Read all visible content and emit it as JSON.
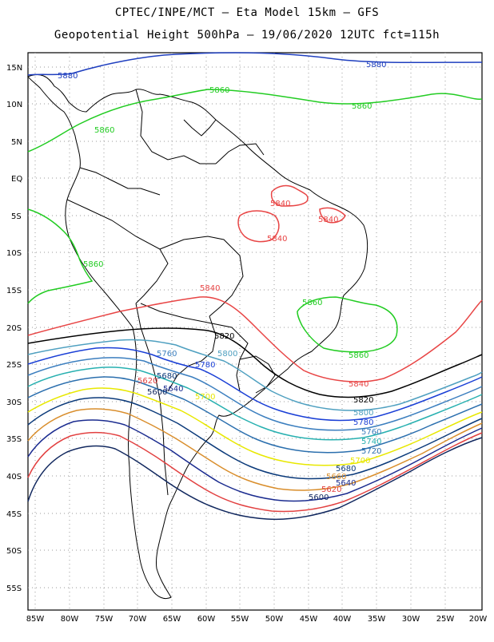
{
  "title": {
    "line1": "CPTEC/INPE/MCT  –   Eta Model 15km  –  GFS",
    "line2": "Geopotential Height 500hPa  –  19/06/2020 12UTC fct=115h"
  },
  "axes": {
    "lon_labels": [
      "85W",
      "80W",
      "75W",
      "70W",
      "65W",
      "60W",
      "55W",
      "50W",
      "45W",
      "40W",
      "35W",
      "30W",
      "25W",
      "20W"
    ],
    "lat_labels": [
      "15N",
      "10N",
      "5N",
      "EQ",
      "5S",
      "10S",
      "15S",
      "20S",
      "25S",
      "30S",
      "35S",
      "40S",
      "45S",
      "50S",
      "55S"
    ]
  },
  "contours": [
    {
      "value": "5880",
      "color": "#1f3fbf"
    },
    {
      "value": "5860",
      "color": "#22cc22"
    },
    {
      "value": "5840",
      "color": "#e84545"
    },
    {
      "value": "5820",
      "color": "#000000"
    },
    {
      "value": "5800",
      "color": "#4fa0c0"
    },
    {
      "value": "5780",
      "color": "#1a3fd6"
    },
    {
      "value": "5760",
      "color": "#3c7fbf"
    },
    {
      "value": "5740",
      "color": "#27b0b0"
    },
    {
      "value": "5720",
      "color": "#2b6fae"
    },
    {
      "value": "5700",
      "color": "#e8e800"
    },
    {
      "value": "5680",
      "color": "#0b3a7a"
    },
    {
      "value": "5660",
      "color": "#d98e2c"
    },
    {
      "value": "5640",
      "color": "#1a2b8f"
    },
    {
      "value": "5620",
      "color": "#e24040"
    },
    {
      "value": "5600",
      "color": "#10275e"
    }
  ]
}
